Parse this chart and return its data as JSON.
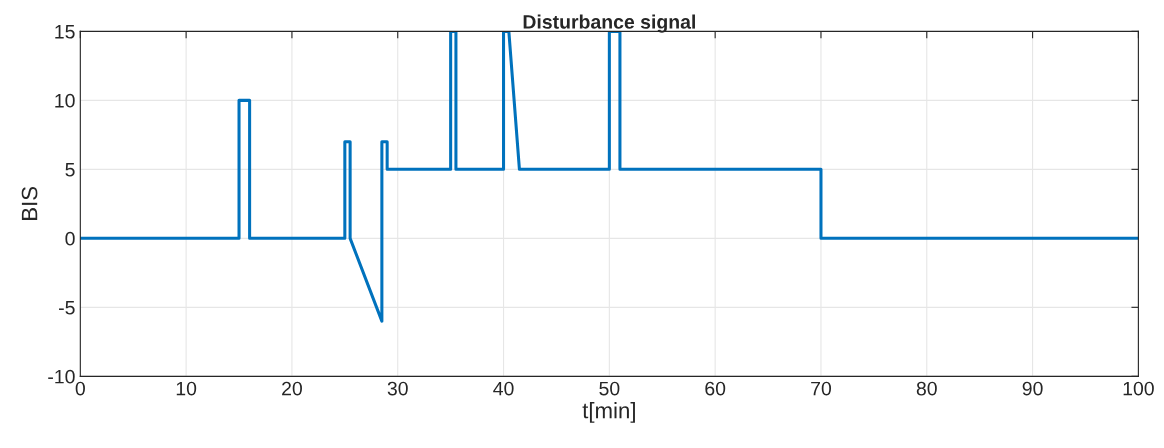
{
  "chart_data": {
    "type": "line",
    "title": "Disturbance signal",
    "xlabel": "t[min]",
    "ylabel": "BIS",
    "x": [
      0,
      15,
      15,
      16,
      16,
      25,
      25,
      25.5,
      25.5,
      28.5,
      28.5,
      29,
      29,
      35,
      35,
      35.5,
      35.5,
      40,
      40,
      40.5,
      41.5,
      50,
      50,
      51,
      51,
      70,
      70,
      100
    ],
    "series": [
      {
        "color": "#0072bd",
        "values": [
          0,
          0,
          10,
          10,
          0,
          0,
          7,
          7,
          0,
          -6,
          7,
          7,
          5,
          5,
          15,
          15,
          5,
          5,
          15,
          15,
          5,
          5,
          15,
          15,
          5,
          5,
          0,
          0
        ]
      }
    ],
    "xlim": [
      0,
      100
    ],
    "xticks": [
      0,
      10,
      20,
      30,
      40,
      50,
      60,
      70,
      80,
      90,
      100
    ],
    "ylim": [
      -10,
      15
    ],
    "yticks": [
      -10,
      -5,
      0,
      5,
      10,
      15
    ],
    "grid": true,
    "marker": "none",
    "line_style": "solid"
  }
}
